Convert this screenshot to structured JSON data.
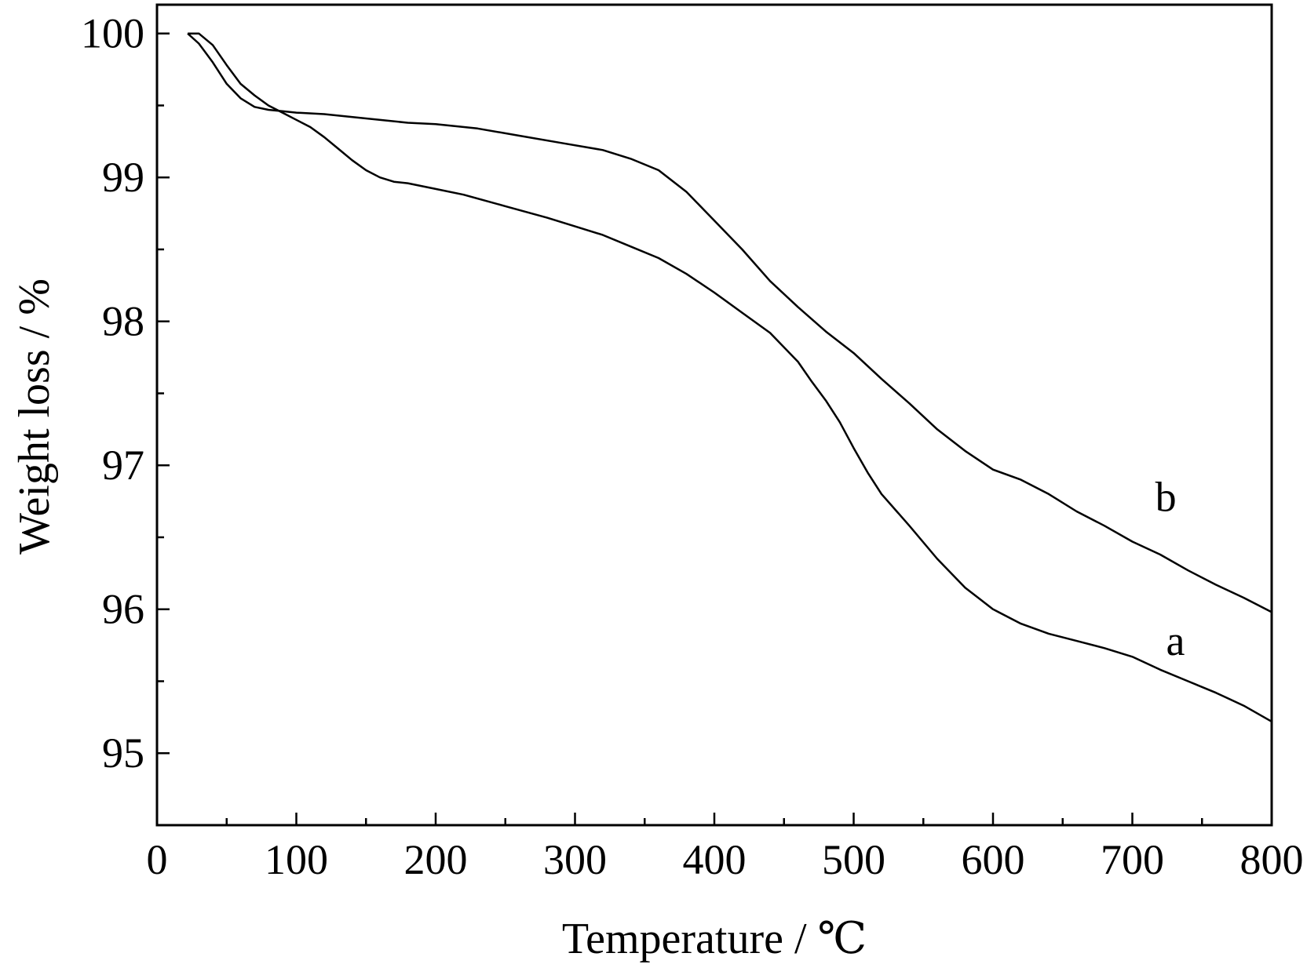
{
  "chart_data": {
    "type": "line",
    "title": "",
    "xlabel": "Temperature / ℃",
    "ylabel": "Weight loss / %",
    "xlim": [
      0,
      800
    ],
    "ylim": [
      94.5,
      100.2
    ],
    "xticks": [
      0,
      100,
      200,
      300,
      400,
      500,
      600,
      700,
      800
    ],
    "xtick_labels": [
      "0",
      "100",
      "200",
      "300",
      "400",
      "500",
      "600",
      "700",
      "800"
    ],
    "yticks": [
      95,
      96,
      97,
      98,
      99,
      100
    ],
    "ytick_labels": [
      "95",
      "96",
      "97",
      "98",
      "99",
      "100"
    ],
    "minor_xticks": [
      50,
      150,
      250,
      350,
      450,
      550,
      650,
      750
    ],
    "minor_yticks": [
      95.5,
      96.5,
      97.5,
      98.5,
      99.5
    ],
    "grid": false,
    "colors": {
      "axis": "#000000",
      "line": "#000000",
      "background": "#ffffff"
    },
    "series": [
      {
        "name": "a",
        "x": [
          22,
          30,
          40,
          50,
          60,
          70,
          80,
          90,
          100,
          110,
          120,
          130,
          140,
          150,
          160,
          170,
          180,
          200,
          220,
          250,
          280,
          300,
          320,
          340,
          360,
          380,
          400,
          420,
          440,
          460,
          470,
          480,
          490,
          500,
          510,
          520,
          540,
          560,
          580,
          600,
          620,
          640,
          660,
          680,
          700,
          720,
          740,
          760,
          780,
          800
        ],
        "y": [
          100.0,
          100.0,
          99.92,
          99.78,
          99.65,
          99.57,
          99.5,
          99.45,
          99.4,
          99.35,
          99.28,
          99.2,
          99.12,
          99.05,
          99.0,
          98.97,
          98.96,
          98.92,
          98.88,
          98.8,
          98.72,
          98.66,
          98.6,
          98.52,
          98.44,
          98.33,
          98.2,
          98.06,
          97.92,
          97.72,
          97.58,
          97.45,
          97.3,
          97.12,
          96.95,
          96.8,
          96.58,
          96.35,
          96.15,
          96.0,
          95.9,
          95.83,
          95.78,
          95.73,
          95.67,
          95.58,
          95.5,
          95.42,
          95.33,
          95.22
        ]
      },
      {
        "name": "b",
        "x": [
          22,
          30,
          40,
          50,
          60,
          70,
          80,
          90,
          100,
          120,
          150,
          180,
          200,
          230,
          260,
          290,
          320,
          340,
          360,
          380,
          400,
          420,
          440,
          460,
          480,
          500,
          520,
          540,
          560,
          580,
          600,
          620,
          640,
          660,
          680,
          700,
          720,
          740,
          760,
          780,
          800
        ],
        "y": [
          100.0,
          99.93,
          99.8,
          99.65,
          99.55,
          99.49,
          99.47,
          99.46,
          99.45,
          99.44,
          99.41,
          99.38,
          99.37,
          99.34,
          99.29,
          99.24,
          99.19,
          99.13,
          99.05,
          98.9,
          98.7,
          98.5,
          98.28,
          98.1,
          97.93,
          97.78,
          97.6,
          97.43,
          97.25,
          97.1,
          96.97,
          96.9,
          96.8,
          96.68,
          96.58,
          96.47,
          96.38,
          96.27,
          96.17,
          96.08,
          95.98
        ]
      }
    ],
    "annotations": [
      {
        "text": "b",
        "x": 724,
        "y": 96.78
      },
      {
        "text": "a",
        "x": 731,
        "y": 95.78
      }
    ]
  }
}
